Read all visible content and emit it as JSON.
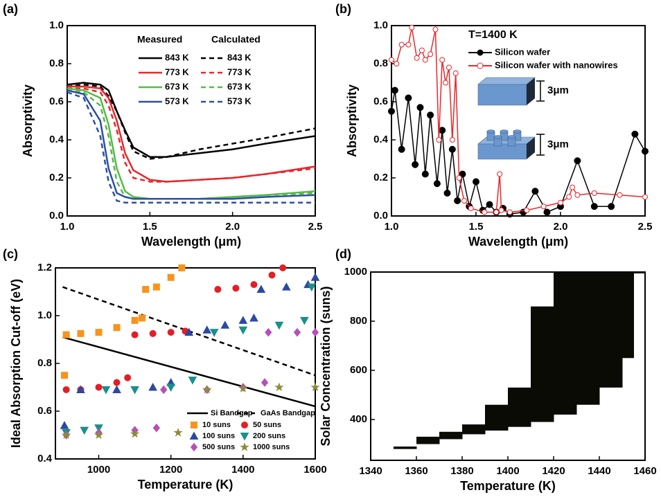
{
  "chart_data": [
    {
      "panel": "(a)",
      "type": "line",
      "xlabel": "Wavelength (μm)",
      "ylabel": "Absorptivity",
      "xlim": [
        1,
        2.5
      ],
      "ylim": [
        0,
        1
      ],
      "xticks": [
        {
          "value": 1,
          "label": "1.0"
        },
        1.5,
        {
          "value": 2,
          "label": "2.0"
        },
        2.5
      ],
      "yticks": [
        {
          "value": 0,
          "label": "0.0"
        },
        0.2,
        0.4,
        0.6,
        0.8,
        {
          "value": 1,
          "label": "1.0"
        }
      ],
      "legend_headers": [
        "Measured",
        "Calculated"
      ],
      "x": [
        1.0,
        1.1,
        1.2,
        1.25,
        1.3,
        1.35,
        1.4,
        1.5,
        1.6,
        1.8,
        2.0,
        2.2,
        2.5
      ],
      "series": [
        {
          "name": "843 K",
          "color": "#000000",
          "dash": false,
          "values": [
            0.69,
            0.7,
            0.69,
            0.66,
            0.55,
            0.45,
            0.36,
            0.31,
            0.31,
            0.33,
            0.35,
            0.38,
            0.42
          ]
        },
        {
          "name": "843 K",
          "color": "#000000",
          "dash": true,
          "values": [
            0.68,
            0.69,
            0.68,
            0.63,
            0.55,
            0.44,
            0.34,
            0.3,
            0.31,
            0.35,
            0.38,
            0.41,
            0.46
          ]
        },
        {
          "name": "773 K",
          "color": "#e8262a",
          "dash": false,
          "values": [
            0.68,
            0.68,
            0.67,
            0.62,
            0.5,
            0.33,
            0.24,
            0.19,
            0.18,
            0.19,
            0.2,
            0.22,
            0.26
          ]
        },
        {
          "name": "773 K",
          "color": "#e8262a",
          "dash": true,
          "values": [
            0.67,
            0.67,
            0.65,
            0.58,
            0.45,
            0.28,
            0.2,
            0.18,
            0.18,
            0.19,
            0.2,
            0.22,
            0.25
          ]
        },
        {
          "name": "673 K",
          "color": "#56b947",
          "dash": false,
          "values": [
            0.67,
            0.66,
            0.62,
            0.48,
            0.25,
            0.13,
            0.1,
            0.09,
            0.09,
            0.09,
            0.1,
            0.11,
            0.13
          ]
        },
        {
          "name": "673 K",
          "color": "#56b947",
          "dash": true,
          "values": [
            0.66,
            0.65,
            0.58,
            0.42,
            0.18,
            0.1,
            0.09,
            0.09,
            0.09,
            0.09,
            0.1,
            0.11,
            0.12
          ]
        },
        {
          "name": "573 K",
          "color": "#2c4fa3",
          "dash": false,
          "values": [
            0.66,
            0.64,
            0.5,
            0.25,
            0.12,
            0.1,
            0.09,
            0.09,
            0.09,
            0.09,
            0.09,
            0.1,
            0.11
          ]
        },
        {
          "name": "573 K",
          "color": "#2c4fa3",
          "dash": true,
          "values": [
            0.65,
            0.62,
            0.42,
            0.18,
            0.08,
            0.07,
            0.07,
            0.07,
            0.07,
            0.07,
            0.07,
            0.07,
            0.07
          ]
        }
      ]
    },
    {
      "panel": "(b)",
      "type": "line",
      "xlabel": "Wavelength (μm)",
      "ylabel": "Absorptivity",
      "xlim": [
        1,
        2.5
      ],
      "ylim": [
        0,
        1
      ],
      "xticks": [
        {
          "value": 1,
          "label": "1.0"
        },
        1.5,
        {
          "value": 2,
          "label": "2.0"
        },
        2.5
      ],
      "yticks": [
        {
          "value": 0,
          "label": "0.0"
        },
        0.2,
        0.4,
        0.6,
        0.8,
        {
          "value": 1,
          "label": "1.0"
        }
      ],
      "annotation": "T=1400 K",
      "dimension_labels": [
        "3μm",
        "3μm"
      ],
      "series": [
        {
          "name": "Silicon wafer",
          "color": "#000000",
          "marker": "circle",
          "x": [
            1.0,
            1.02,
            1.06,
            1.1,
            1.14,
            1.17,
            1.2,
            1.23,
            1.27,
            1.3,
            1.33,
            1.36,
            1.39,
            1.42,
            1.46,
            1.5,
            1.54,
            1.58,
            1.62,
            1.66,
            1.7,
            1.78,
            1.85,
            1.92,
            2.0,
            2.1,
            2.2,
            2.3,
            2.44,
            2.5
          ],
          "values": [
            0.55,
            0.66,
            0.35,
            0.62,
            0.27,
            0.57,
            0.22,
            0.53,
            0.17,
            0.45,
            0.12,
            0.35,
            0.08,
            0.22,
            0.05,
            0.18,
            0.03,
            0.06,
            0.02,
            0.04,
            0.01,
            0.02,
            0.13,
            0.02,
            0.05,
            0.29,
            0.05,
            0.05,
            0.43,
            0.34
          ]
        },
        {
          "name": "Silicon wafer with nanowires",
          "color": "#e8262a",
          "marker": "open-circle",
          "x": [
            1.0,
            1.03,
            1.06,
            1.1,
            1.12,
            1.15,
            1.18,
            1.2,
            1.23,
            1.26,
            1.28,
            1.3,
            1.32,
            1.34,
            1.36,
            1.38,
            1.4,
            1.43,
            1.47,
            1.55,
            1.62,
            1.64,
            1.65,
            1.7,
            1.8,
            1.9,
            2.0,
            2.05,
            2.07,
            2.1,
            2.2,
            2.35,
            2.5
          ],
          "values": [
            0.82,
            0.8,
            0.9,
            0.9,
            0.99,
            0.83,
            0.87,
            0.82,
            0.85,
            0.98,
            0.4,
            0.82,
            0.7,
            0.78,
            0.4,
            0.75,
            0.2,
            0.08,
            0.04,
            0.02,
            0.02,
            0.22,
            0.03,
            0.02,
            0.03,
            0.05,
            0.07,
            0.1,
            0.15,
            0.11,
            0.12,
            0.11,
            0.1
          ]
        }
      ]
    },
    {
      "panel": "(c)",
      "type": "scatter",
      "xlabel": "Temperature (K)",
      "ylabel": "Ideal Absorption Cut-off (eV)",
      "xlim": [
        880,
        1600
      ],
      "ylim": [
        0.4,
        1.2
      ],
      "xticks": [
        1000,
        1200,
        1400,
        1600
      ],
      "yticks": [
        0.4,
        0.6,
        0.8,
        {
          "value": 1,
          "label": "1.0"
        },
        1.2
      ],
      "lines": [
        {
          "name": "Si Bandgap",
          "color": "#000000",
          "dash": false,
          "x": [
            900,
            1600
          ],
          "values": [
            0.91,
            0.62
          ]
        },
        {
          "name": "GaAs Bandgap",
          "color": "#000000",
          "dash": true,
          "x": [
            900,
            1600
          ],
          "values": [
            1.12,
            0.75
          ]
        }
      ],
      "series": [
        {
          "name": "10 suns",
          "color": "#f7941d",
          "marker": "square",
          "x": [
            905,
            910,
            950,
            1000,
            1050,
            1100,
            1120,
            1130,
            1160,
            1200,
            1230
          ],
          "values": [
            0.75,
            0.92,
            0.925,
            0.93,
            0.95,
            0.98,
            0.99,
            1.11,
            1.12,
            1.16,
            1.2
          ]
        },
        {
          "name": "50 suns",
          "color": "#e41e26",
          "marker": "circle",
          "x": [
            910,
            950,
            1000,
            1050,
            1080,
            1100,
            1150,
            1200,
            1240,
            1330,
            1380,
            1430,
            1480,
            1510
          ],
          "values": [
            0.69,
            0.69,
            0.7,
            0.72,
            0.74,
            0.92,
            0.925,
            0.93,
            0.935,
            1.11,
            1.115,
            1.13,
            1.17,
            1.2
          ]
        },
        {
          "name": "100 suns",
          "color": "#2a49a5",
          "marker": "triangle-up",
          "x": [
            905,
            950,
            1050,
            1150,
            1200,
            1250,
            1300,
            1350,
            1400,
            1430,
            1450,
            1520,
            1580,
            1600
          ],
          "values": [
            0.54,
            0.69,
            0.69,
            0.7,
            0.72,
            0.93,
            0.94,
            0.96,
            0.98,
            0.99,
            1.11,
            1.12,
            1.13,
            1.16
          ]
        },
        {
          "name": "200 suns",
          "color": "#1b8f8a",
          "marker": "triangle-down",
          "x": [
            910,
            960,
            1000,
            1020,
            1100,
            1200,
            1260,
            1320,
            1400,
            1500,
            1570,
            1590
          ],
          "values": [
            0.51,
            0.52,
            0.53,
            0.69,
            0.69,
            0.7,
            0.73,
            0.93,
            0.94,
            0.96,
            0.98,
            1.12
          ]
        },
        {
          "name": "500 suns",
          "color": "#b84fb8",
          "marker": "diamond",
          "x": [
            910,
            1000,
            1100,
            1160,
            1180,
            1300,
            1400,
            1460,
            1470,
            1550,
            1600
          ],
          "values": [
            0.5,
            0.51,
            0.52,
            0.53,
            0.69,
            0.69,
            0.7,
            0.72,
            0.93,
            0.93,
            0.93
          ]
        },
        {
          "name": "1000 suns",
          "color": "#8b8b3a",
          "marker": "star",
          "x": [
            910,
            1000,
            1100,
            1220,
            1300,
            1400,
            1500,
            1600
          ],
          "values": [
            0.5,
            0.5,
            0.505,
            0.51,
            0.69,
            0.695,
            0.7,
            0.7
          ]
        }
      ]
    },
    {
      "panel": "(d)",
      "type": "area-steps",
      "xlabel": "Temperature (K)",
      "ylabel": "Solar Concentration (suns)",
      "xlim": [
        1340,
        1460
      ],
      "ylim": [
        234,
        1000
      ],
      "xticks": [
        1340,
        1360,
        1380,
        1400,
        1420,
        1440,
        1460
      ],
      "yticks": [
        400,
        600,
        800,
        1000
      ],
      "color": "#0b0b05",
      "x": [
        1350,
        1360,
        1370,
        1380,
        1390,
        1400,
        1410,
        1420,
        1430,
        1440,
        1450,
        1455
      ],
      "upper": [
        290,
        330,
        350,
        380,
        460,
        530,
        860,
        1000,
        1000,
        1000,
        1000,
        1000
      ],
      "lower": [
        280,
        300,
        320,
        340,
        355,
        370,
        390,
        420,
        460,
        530,
        650,
        1000
      ]
    }
  ]
}
